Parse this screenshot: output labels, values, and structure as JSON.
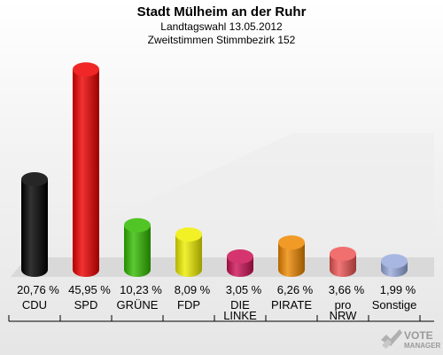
{
  "header": {
    "title": "Stadt Mülheim an der Ruhr",
    "subtitle1": "Landtagswahl 13.05.2012",
    "subtitle2": "Zweitstimmen Stimmbezirk 152"
  },
  "logo": {
    "line1": "VOTE",
    "line2": "MANAGER"
  },
  "chart_data": {
    "type": "bar",
    "title": "Stadt Mülheim an der Ruhr",
    "subtitle": "Landtagswahl 13.05.2012 — Zweitstimmen Stimmbezirk 152",
    "categories": [
      "CDU",
      "SPD",
      "GRÜNE",
      "FDP",
      "DIE LINKE",
      "PIRATE",
      "pro NRW",
      "Sonstige"
    ],
    "category_lines": [
      [
        "CDU"
      ],
      [
        "SPD"
      ],
      [
        "GRÜNE"
      ],
      [
        "FDP"
      ],
      [
        "DIE",
        "LINKE"
      ],
      [
        "PIRATE"
      ],
      [
        "pro",
        "NRW"
      ],
      [
        "Sonstige"
      ]
    ],
    "values": [
      20.76,
      45.95,
      10.23,
      8.09,
      3.05,
      6.26,
      3.66,
      1.99
    ],
    "value_labels": [
      "20,76 %",
      "45,95 %",
      "10,23 %",
      "8,09 %",
      "3,05 %",
      "6,26 %",
      "3,66 %",
      "1,99 %"
    ],
    "colors": [
      "#000000",
      "#ee0000",
      "#33bb00",
      "#eeee00",
      "#cc1155",
      "#ee8800",
      "#ee5555",
      "#99aadd"
    ],
    "xlabel": "",
    "ylabel": "",
    "ylim": [
      0,
      46
    ],
    "grid": false,
    "legend": "none"
  }
}
